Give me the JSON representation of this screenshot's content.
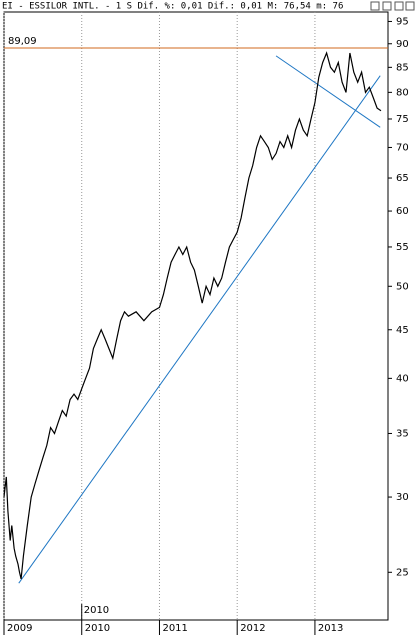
{
  "chart_data": {
    "type": "line",
    "title": "EI - ESSILOR INTL. -  1 S Dif. %: 0,01 Dif.: 0,01 M: 76,54 m: 76",
    "log_scale": true,
    "x": [
      2009.0,
      2009.03,
      2009.05,
      2009.08,
      2009.1,
      2009.13,
      2009.15,
      2009.18,
      2009.2,
      2009.22,
      2009.25,
      2009.3,
      2009.35,
      2009.4,
      2009.45,
      2009.5,
      2009.55,
      2009.6,
      2009.65,
      2009.7,
      2009.75,
      2009.8,
      2009.85,
      2009.9,
      2009.95,
      2010.0,
      2010.05,
      2010.1,
      2010.15,
      2010.2,
      2010.25,
      2010.3,
      2010.35,
      2010.4,
      2010.45,
      2010.5,
      2010.55,
      2010.6,
      2010.7,
      2010.8,
      2010.9,
      2011.0,
      2011.05,
      2011.1,
      2011.15,
      2011.2,
      2011.25,
      2011.3,
      2011.35,
      2011.4,
      2011.45,
      2011.5,
      2011.55,
      2011.6,
      2011.65,
      2011.7,
      2011.75,
      2011.8,
      2011.85,
      2011.9,
      2011.95,
      2012.0,
      2012.05,
      2012.1,
      2012.15,
      2012.2,
      2012.25,
      2012.3,
      2012.35,
      2012.4,
      2012.45,
      2012.5,
      2012.55,
      2012.6,
      2012.65,
      2012.7,
      2012.75,
      2012.8,
      2012.85,
      2012.9,
      2012.95,
      2013.0,
      2013.05,
      2013.1,
      2013.15,
      2013.2,
      2013.25,
      2013.3,
      2013.35,
      2013.4,
      2013.45,
      2013.5,
      2013.55,
      2013.6,
      2013.65,
      2013.7,
      2013.75,
      2013.8,
      2013.85
    ],
    "series": [
      {
        "name": "EI",
        "color": "#000000",
        "values": [
          30,
          31.5,
          29,
          27,
          28,
          26.5,
          26,
          25.5,
          25,
          24.6,
          26,
          28,
          30,
          31,
          32,
          33,
          34,
          35.5,
          35,
          36,
          37,
          36.5,
          38,
          38.5,
          38,
          39,
          40,
          41,
          43,
          44,
          45,
          44,
          43,
          42,
          44,
          46,
          47,
          46.5,
          47,
          46,
          47,
          47.5,
          49,
          51,
          53,
          54,
          55,
          54,
          55,
          53,
          52,
          50,
          48,
          50,
          49,
          51,
          50,
          51,
          53,
          55,
          56,
          57,
          59,
          62,
          65,
          67,
          70,
          72,
          71,
          70,
          68,
          69,
          71,
          70,
          72,
          70,
          73,
          75,
          73,
          72,
          75,
          78,
          83,
          86,
          88,
          85,
          84,
          86,
          82,
          80,
          88,
          84,
          82,
          84,
          80,
          81,
          79,
          77,
          76.5
        ]
      }
    ],
    "hline": {
      "value": 89.09,
      "label": "89,09",
      "color": "#d2691e"
    },
    "trendlines": [
      {
        "x": [
          2009.19,
          2013.84
        ],
        "y": [
          24.35,
          83.3
        ],
        "color": "#1f77c4"
      },
      {
        "x": [
          2012.5,
          2013.84
        ],
        "y": [
          87.4,
          73.5
        ],
        "color": "#1f77c4"
      }
    ],
    "annotation": "2010",
    "xlim": [
      2009.0,
      2013.94
    ],
    "ylim": [
      22.27,
      97.2
    ],
    "xticks": [
      2009,
      2010,
      2011,
      2012,
      2013
    ],
    "yticks": [
      25,
      30,
      35,
      40,
      45,
      50,
      55,
      60,
      65,
      70,
      75,
      80,
      85,
      90,
      95
    ]
  }
}
